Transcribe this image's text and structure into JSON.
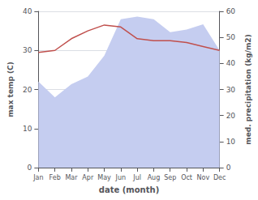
{
  "chart_data": {
    "type": "line",
    "xlabel": "date (month)",
    "ylabel": "max temp (C)",
    "y2label": "med. precipitation (kg/m2)",
    "categories": [
      "Jan",
      "Feb",
      "Mar",
      "Apr",
      "May",
      "Jun",
      "Jul",
      "Aug",
      "Sep",
      "Oct",
      "Nov",
      "Dec"
    ],
    "series": [
      {
        "type": "area",
        "axis": "y2",
        "color": "#c5cdf0",
        "values": [
          33,
          27,
          32,
          35,
          43,
          57,
          58,
          57,
          52,
          53,
          55,
          45
        ]
      },
      {
        "type": "line",
        "color": "#c0504d",
        "values": [
          29.5,
          30.0,
          33.0,
          35.0,
          36.5,
          36.0,
          33.0,
          32.5,
          32.5,
          32.0,
          31.0,
          30.0
        ]
      }
    ],
    "ylim": [
      0,
      40
    ],
    "yticks": [
      0,
      10,
      20,
      30,
      40
    ],
    "y2lim": [
      0,
      60
    ],
    "y2ticks": [
      0,
      10,
      20,
      30,
      40,
      50,
      60
    ],
    "grid": true
  }
}
